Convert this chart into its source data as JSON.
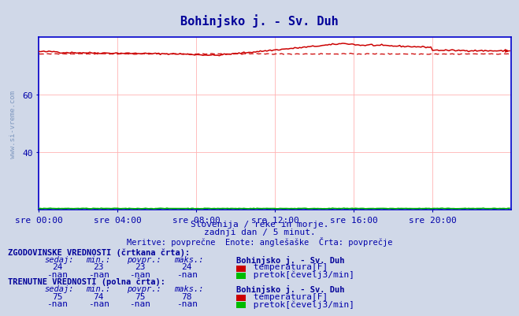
{
  "title": "Bohinjsko j. - Sv. Duh",
  "title_color": "#000099",
  "bg_color": "#d0d8e8",
  "plot_bg_color": "#ffffff",
  "grid_color": "#ffb3b3",
  "axis_color": "#0000cc",
  "tick_color": "#0000aa",
  "text_color": "#0000aa",
  "watermark_color": "#5577aa",
  "ylim": [
    20,
    80
  ],
  "yticks": [
    40,
    60
  ],
  "xlim": [
    0,
    288
  ],
  "xtick_labels": [
    "sre 00:00",
    "sre 04:00",
    "sre 08:00",
    "sre 12:00",
    "sre 16:00",
    "sre 20:00"
  ],
  "xtick_positions": [
    0,
    48,
    96,
    144,
    192,
    240
  ],
  "subtitle1": "Slovenija / reke in morje.",
  "subtitle2": "zadnji dan / 5 minut.",
  "subtitle3": "Meritve: povprečne  Enote: anglešaške  Črta: povprečje",
  "hist_label": "ZGODOVINSKE VREDNOSTI (črtkana črta):",
  "curr_label": "TRENUTNE VREDNOSTI (polna črta):",
  "col_headers": [
    "sedaj:",
    "min.:",
    "povpr.:",
    "maks.:"
  ],
  "station_name": "Bohinjsko j. - Sv. Duh",
  "hist_temp": [
    24,
    23,
    23,
    24
  ],
  "hist_flow": [
    "-nan",
    "-nan",
    "-nan",
    "-nan"
  ],
  "curr_temp": [
    75,
    74,
    75,
    78
  ],
  "curr_flow": [
    "-nan",
    "-nan",
    "-nan",
    "-nan"
  ],
  "temp_color": "#cc0000",
  "flow_color": "#00bb00",
  "watermark_label": "www.si-vreme.com"
}
